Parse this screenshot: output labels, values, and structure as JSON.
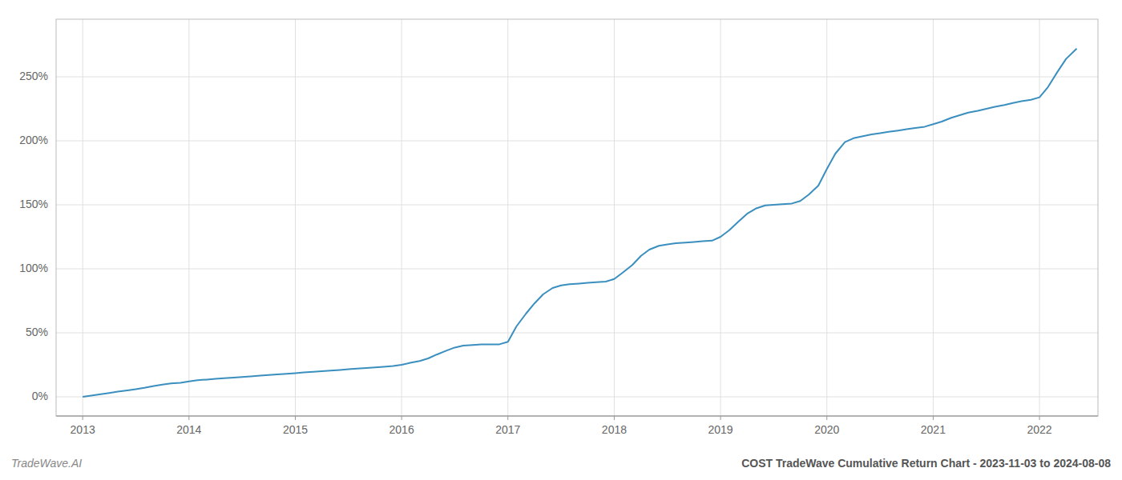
{
  "chart_data": {
    "type": "line",
    "title": "COST TradeWave Cumulative Return Chart - 2023-11-03 to 2024-08-08",
    "annotations": [
      "TradeWave.AI"
    ],
    "color": "#3a8fbf",
    "grid": true,
    "xlim": [
      2012.75,
      2022.55
    ],
    "ylim": [
      -15,
      295
    ],
    "xticks": [
      2013,
      2014,
      2015,
      2016,
      2017,
      2018,
      2019,
      2020,
      2021,
      2022
    ],
    "yticks": [
      {
        "value": 0,
        "label": "0%"
      },
      {
        "value": 50,
        "label": "50%"
      },
      {
        "value": 100,
        "label": "100%"
      },
      {
        "value": 150,
        "label": "150%"
      },
      {
        "value": 200,
        "label": "200%"
      },
      {
        "value": 250,
        "label": "250%"
      }
    ],
    "x": [
      2013.0,
      2013.08,
      2013.17,
      2013.25,
      2013.33,
      2013.42,
      2013.5,
      2013.58,
      2013.67,
      2013.75,
      2013.83,
      2013.92,
      2014.0,
      2014.08,
      2014.17,
      2014.25,
      2014.33,
      2014.42,
      2014.5,
      2014.58,
      2014.67,
      2014.75,
      2014.83,
      2014.92,
      2015.0,
      2015.08,
      2015.17,
      2015.25,
      2015.33,
      2015.42,
      2015.5,
      2015.58,
      2015.67,
      2015.75,
      2015.83,
      2015.92,
      2016.0,
      2016.08,
      2016.17,
      2016.25,
      2016.33,
      2016.42,
      2016.5,
      2016.58,
      2016.67,
      2016.75,
      2016.83,
      2016.92,
      2017.0,
      2017.08,
      2017.17,
      2017.25,
      2017.33,
      2017.42,
      2017.5,
      2017.58,
      2017.67,
      2017.75,
      2017.83,
      2017.92,
      2018.0,
      2018.08,
      2018.17,
      2018.25,
      2018.33,
      2018.42,
      2018.5,
      2018.58,
      2018.67,
      2018.75,
      2018.83,
      2018.92,
      2019.0,
      2019.08,
      2019.17,
      2019.25,
      2019.33,
      2019.42,
      2019.5,
      2019.58,
      2019.67,
      2019.75,
      2019.83,
      2019.92,
      2020.0,
      2020.08,
      2020.17,
      2020.25,
      2020.33,
      2020.42,
      2020.5,
      2020.58,
      2020.67,
      2020.75,
      2020.83,
      2020.92,
      2021.0,
      2021.08,
      2021.17,
      2021.25,
      2021.33,
      2021.42,
      2021.5,
      2021.58,
      2021.67,
      2021.75,
      2021.83,
      2021.92,
      2022.0,
      2022.08,
      2022.17,
      2022.25,
      2022.35
    ],
    "values": [
      0.0,
      1.0,
      2.0,
      3.0,
      4.0,
      5.0,
      6.0,
      7.0,
      8.5,
      9.5,
      10.5,
      11.0,
      12.0,
      13.0,
      13.5,
      14.0,
      14.5,
      15.0,
      15.5,
      16.0,
      16.5,
      17.0,
      17.5,
      18.0,
      18.5,
      19.0,
      19.5,
      20.0,
      20.5,
      21.0,
      21.5,
      22.0,
      22.5,
      23.0,
      23.5,
      24.0,
      25.0,
      26.5,
      28.0,
      30.0,
      33.0,
      36.0,
      38.5,
      40.0,
      40.5,
      41.0,
      41.0,
      41.0,
      43.0,
      55.0,
      65.0,
      73.0,
      80.0,
      85.0,
      87.0,
      88.0,
      88.5,
      89.0,
      89.5,
      90.0,
      92.0,
      97.0,
      103.0,
      110.0,
      115.0,
      118.0,
      119.0,
      120.0,
      120.5,
      121.0,
      121.5,
      122.0,
      125.0,
      130.0,
      137.0,
      143.0,
      147.0,
      149.5,
      150.0,
      150.5,
      151.0,
      153.0,
      158.0,
      165.0,
      178.0,
      190.0,
      199.0,
      202.0,
      203.5,
      205.0,
      206.0,
      207.0,
      208.0,
      209.0,
      210.0,
      211.0,
      213.0,
      215.0,
      218.0,
      220.0,
      222.0,
      223.5,
      225.0,
      226.5,
      228.0,
      229.5,
      231.0,
      232.0,
      234.0,
      242.0,
      254.0,
      264.0,
      272.0
    ]
  }
}
